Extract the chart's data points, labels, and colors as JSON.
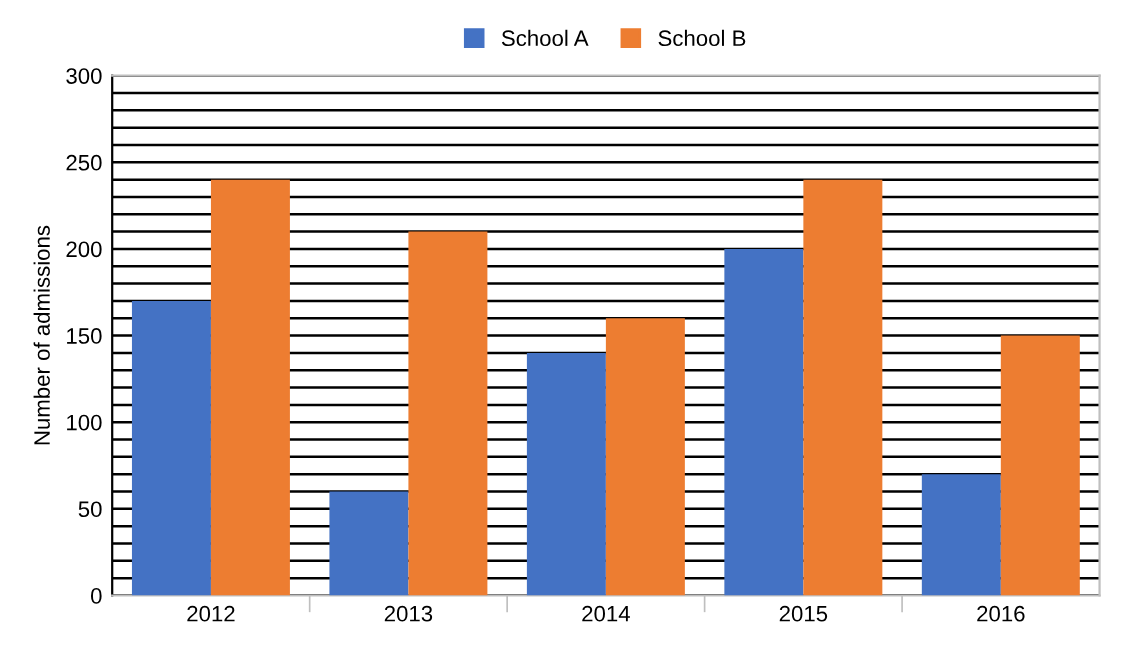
{
  "chart_data": {
    "type": "bar",
    "ylabel": "Number of admissions",
    "categories": [
      "2012",
      "2013",
      "2014",
      "2015",
      "2016"
    ],
    "series": [
      {
        "name": "School A",
        "color": "#4472c4",
        "values": [
          170,
          60,
          140,
          200,
          70
        ]
      },
      {
        "name": "School B",
        "color": "#ed7d31",
        "values": [
          240,
          210,
          160,
          240,
          150
        ]
      }
    ],
    "ylim": [
      0,
      300
    ],
    "yticks": [
      0,
      {
        "value": 10,
        "label": null
      },
      {
        "value": 20,
        "label": null
      },
      {
        "value": 30,
        "label": null
      },
      {
        "value": 40,
        "label": null
      },
      50,
      {
        "value": 60,
        "label": null
      },
      {
        "value": 70,
        "label": null
      },
      {
        "value": 80,
        "label": null
      },
      {
        "value": 90,
        "label": null
      },
      100,
      {
        "value": 110,
        "label": null
      },
      {
        "value": 120,
        "label": null
      },
      {
        "value": 130,
        "label": null
      },
      {
        "value": 140,
        "label": null
      },
      150,
      {
        "value": 160,
        "label": null
      },
      {
        "value": 170,
        "label": null
      },
      {
        "value": 180,
        "label": null
      },
      {
        "value": 190,
        "label": null
      },
      200,
      {
        "value": 210,
        "label": null
      },
      {
        "value": 220,
        "label": null
      },
      {
        "value": 230,
        "label": null
      },
      {
        "value": 240,
        "label": null
      },
      250,
      {
        "value": 260,
        "label": null
      },
      {
        "value": 270,
        "label": null
      },
      {
        "value": 280,
        "label": null
      },
      {
        "value": 290,
        "label": null
      },
      300
    ],
    "grid": "y",
    "legend": "top"
  }
}
